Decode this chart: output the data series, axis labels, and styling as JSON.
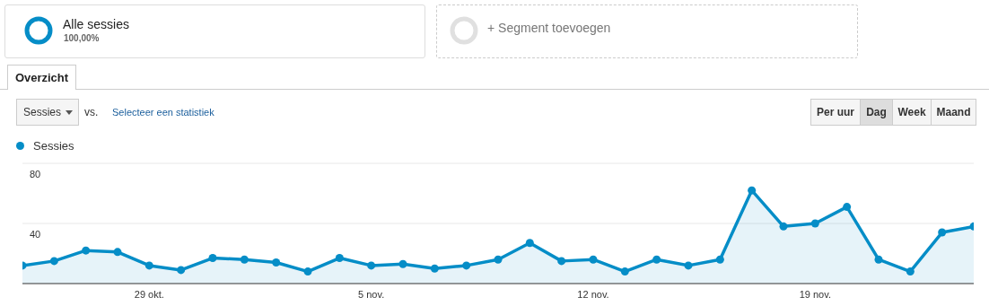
{
  "chart_data": {
    "type": "area",
    "x": [
      "--10-25",
      "--10-26",
      "--10-27",
      "--10-28",
      "--10-29",
      "--10-30",
      "--10-31",
      "--11-01",
      "--11-02",
      "--11-03",
      "--11-04",
      "--11-05",
      "--11-06",
      "--11-07",
      "--11-08",
      "--11-09",
      "--11-10",
      "--11-11",
      "--11-12",
      "--11-13",
      "--11-14",
      "--11-15",
      "--11-16",
      "--11-17",
      "--11-18",
      "--11-19",
      "--11-20",
      "--11-21",
      "--11-22",
      "--11-23",
      "--11-24"
    ],
    "series": [
      {
        "name": "Sessies",
        "color": "#058dc7",
        "values": [
          12,
          15,
          22,
          21,
          12,
          9,
          17,
          16,
          14,
          8,
          17,
          12,
          13,
          10,
          12,
          16,
          27,
          15,
          16,
          8,
          16,
          12,
          16,
          62,
          38,
          40,
          51,
          16,
          8,
          34,
          38
        ]
      }
    ],
    "xlim": [
      "--10-25",
      "--11-24"
    ],
    "xticks": [
      {
        "value": "--10-29",
        "label": "29 okt."
      },
      {
        "value": "--11-05",
        "label": "5 nov."
      },
      {
        "value": "--11-12",
        "label": "12 nov."
      },
      {
        "value": "--11-19",
        "label": "19 nov."
      }
    ],
    "ylim": [
      0,
      80
    ],
    "yticks": [
      40,
      80
    ],
    "grid": "y",
    "legend": "top left",
    "marker": "circle",
    "line_style": "solid",
    "annotations": [
      "Alle sessies",
      "100,00%",
      "+ Segment toevoegen",
      "Overzicht",
      "Sessies",
      "vs.",
      "Selecteer een statistiek",
      "Per uur",
      "Dag",
      "Week",
      "Maand"
    ]
  }
}
